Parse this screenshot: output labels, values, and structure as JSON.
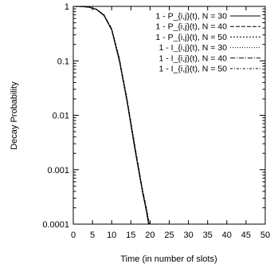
{
  "chart_data": {
    "type": "line",
    "title": "",
    "xlabel": "Time (in number of slots)",
    "ylabel": "Decay Probability",
    "xlim": [
      0,
      50
    ],
    "ylim": [
      0.0001,
      1
    ],
    "yscale": "log",
    "grid": false,
    "legend_position": "top-right",
    "x_ticks": [
      0,
      5,
      10,
      15,
      20,
      25,
      30,
      35,
      40,
      45,
      50
    ],
    "x_tick_labels": [
      "0",
      "5",
      "10",
      "15",
      "20",
      "25",
      "30",
      "35",
      "40",
      "45",
      "50"
    ],
    "y_ticks": [
      0.0001,
      0.001,
      0.01,
      0.1,
      1
    ],
    "y_tick_labels": [
      "0.0001",
      "0.001",
      "0.01",
      "0.1",
      "1"
    ],
    "series": [
      {
        "name": "1 - P_{i,j}(t), N = 30",
        "dash": "",
        "x": [
          0,
          2,
          4,
          6,
          8,
          10,
          12,
          14,
          16,
          18,
          19,
          19.6
        ],
        "y": [
          1,
          0.995,
          0.97,
          0.88,
          0.68,
          0.37,
          0.1,
          0.018,
          0.0025,
          0.0004,
          0.00018,
          0.0001
        ]
      },
      {
        "name": "1 - P_{i,j}(t), N = 40",
        "dash": "5,2",
        "x": [
          0,
          2,
          4,
          6,
          8,
          10,
          12,
          14,
          16,
          18,
          19,
          19.7
        ],
        "y": [
          1,
          0.995,
          0.97,
          0.885,
          0.69,
          0.38,
          0.105,
          0.019,
          0.0027,
          0.00042,
          0.00019,
          0.0001
        ]
      },
      {
        "name": "1 - P_{i,j}(t), N = 50",
        "dash": "2,2",
        "x": [
          0,
          2,
          4,
          6,
          8,
          10,
          12,
          14,
          16,
          18,
          19,
          19.8
        ],
        "y": [
          1,
          0.996,
          0.972,
          0.89,
          0.7,
          0.39,
          0.11,
          0.02,
          0.0028,
          0.00044,
          0.0002,
          0.0001
        ]
      },
      {
        "name": "1 - I_{i,j}(t), N = 30",
        "dash": "1,2",
        "x": [
          0,
          2,
          4,
          6,
          8,
          10,
          12,
          14,
          16,
          18,
          19,
          19.6
        ],
        "y": [
          1,
          0.994,
          0.968,
          0.878,
          0.675,
          0.365,
          0.098,
          0.0175,
          0.0024,
          0.00039,
          0.000175,
          0.0001
        ]
      },
      {
        "name": "1 - I_{i,j}(t), N = 40",
        "dash": "6,2,1,2",
        "x": [
          0,
          2,
          4,
          6,
          8,
          10,
          12,
          14,
          16,
          18,
          19,
          19.7
        ],
        "y": [
          1,
          0.995,
          0.97,
          0.884,
          0.688,
          0.378,
          0.104,
          0.0188,
          0.0026,
          0.00041,
          0.00019,
          0.0001
        ]
      },
      {
        "name": "1 - I_{i,j}(t), N = 50",
        "dash": "3,2,1,2",
        "x": [
          0,
          2,
          4,
          6,
          8,
          10,
          12,
          14,
          16,
          18,
          19,
          19.8
        ],
        "y": [
          1,
          0.996,
          0.973,
          0.892,
          0.702,
          0.392,
          0.112,
          0.0202,
          0.0029,
          0.00045,
          0.00021,
          0.0001
        ]
      }
    ]
  }
}
